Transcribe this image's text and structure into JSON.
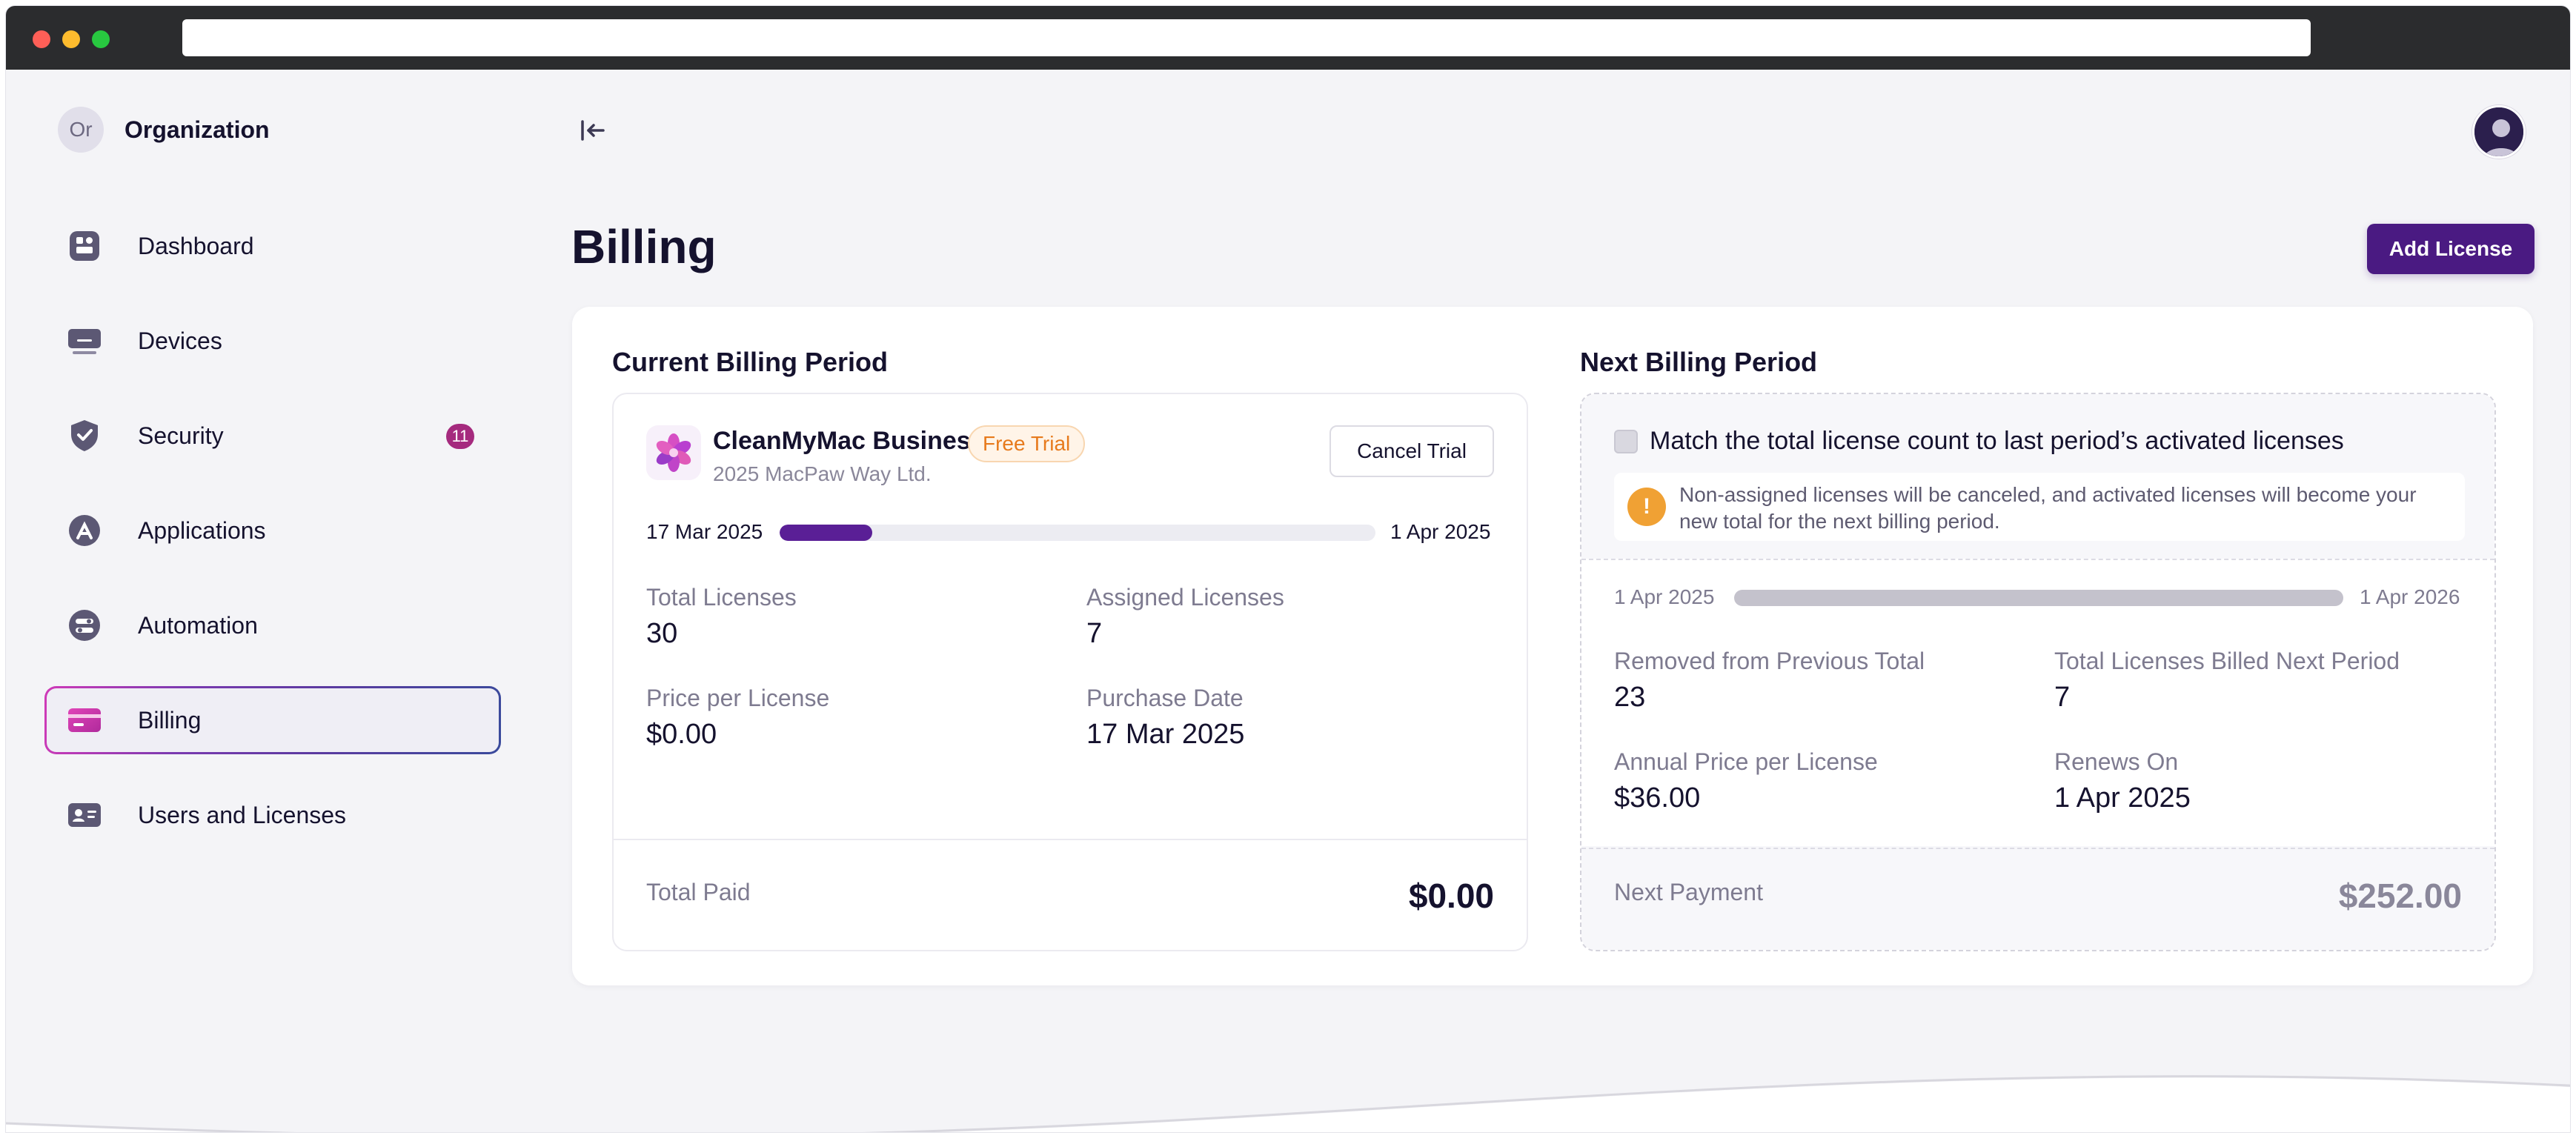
{
  "organization": {
    "avatar_initials": "Or",
    "name": "Organization"
  },
  "sidebar": {
    "items": [
      {
        "label": "Dashboard",
        "icon": "dashboard-icon"
      },
      {
        "label": "Devices",
        "icon": "devices-icon"
      },
      {
        "label": "Security",
        "icon": "shield-icon",
        "badge": "11"
      },
      {
        "label": "Applications",
        "icon": "applications-icon"
      },
      {
        "label": "Automation",
        "icon": "automation-icon"
      },
      {
        "label": "Billing",
        "icon": "billing-icon",
        "active": true
      },
      {
        "label": "Users and Licenses",
        "icon": "users-icon"
      }
    ]
  },
  "header": {
    "title": "Billing",
    "add_button": "Add License"
  },
  "current_period": {
    "title": "Current Billing Period",
    "product_name": "CleanMyMac Business",
    "badge": "Free Trial",
    "company": "2025 MacPaw Way Ltd.",
    "cancel_button": "Cancel Trial",
    "start_date": "17 Mar 2025",
    "end_date": "1 Apr 2025",
    "progress": 0.155,
    "stats": {
      "total_licenses_label": "Total Licenses",
      "total_licenses_value": "30",
      "assigned_licenses_label": "Assigned Licenses",
      "assigned_licenses_value": "7",
      "price_label": "Price per License",
      "price_value": "$0.00",
      "purchase_date_label": "Purchase Date",
      "purchase_date_value": "17 Mar 2025"
    },
    "total_label": "Total Paid",
    "total_value": "$0.00"
  },
  "next_period": {
    "title": "Next Billing Period",
    "match_label": "Match the total license count to last period’s activated licenses",
    "match_checked": false,
    "note": "Non-assigned licenses will be canceled, and activated licenses will become your new total for the next billing period.",
    "start_date": "1 Apr 2025",
    "end_date": "1 Apr 2026",
    "stats": {
      "removed_label": "Removed from Previous Total",
      "removed_value": "23",
      "billed_label": "Total Licenses Billed Next Period",
      "billed_value": "7",
      "annual_price_label": "Annual Price per License",
      "annual_price_value": "$36.00",
      "renews_label": "Renews On",
      "renews_value": "1 Apr 2025"
    },
    "payment_label": "Next Payment",
    "payment_value": "$252.00"
  },
  "colors": {
    "accent": "#4a1a82",
    "progress_fill": "#5a1f96",
    "badge": "#a52a7e",
    "trial_badge_text": "#e77a1c",
    "warning": "#f0a134"
  }
}
